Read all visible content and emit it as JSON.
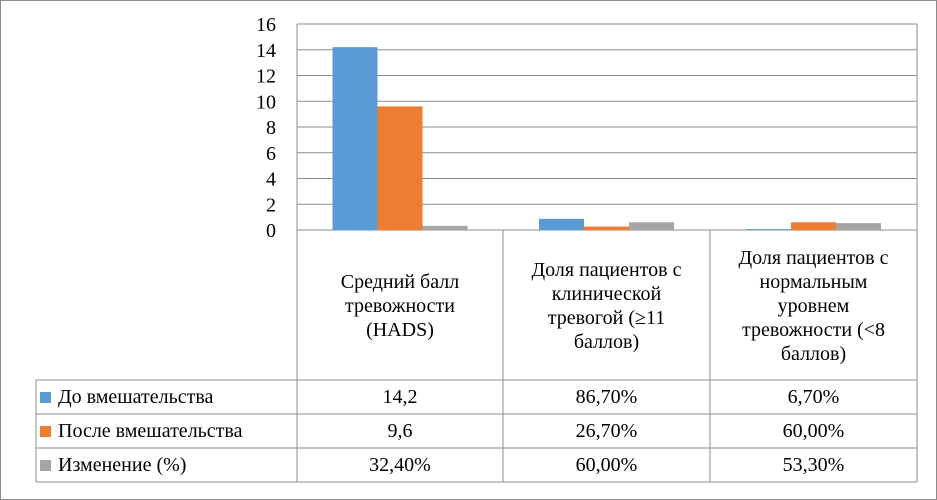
{
  "chart_data": {
    "type": "bar",
    "categories": [
      "Средний балл\nтревожности\n(HADS)",
      "Доля пациентов с\nклинической\nтревогой (≥11\nбаллов)",
      "Доля пациентов с\nнормальным\nуровнем\nтревожности (<8\nбаллов)"
    ],
    "series": [
      {
        "name": "До вмешательства",
        "color": "#5b9bd5",
        "values": [
          14.2,
          0.867,
          0.067
        ],
        "labels": [
          "14,2",
          "86,70%",
          "6,70%"
        ]
      },
      {
        "name": "После вмешательства",
        "color": "#ed7d31",
        "values": [
          9.6,
          0.267,
          0.6
        ],
        "labels": [
          "9,6",
          "26,70%",
          "60,00%"
        ]
      },
      {
        "name": "Изменение (%)",
        "color": "#a5a5a5",
        "values": [
          0.324,
          0.6,
          0.533
        ],
        "labels": [
          "32,40%",
          "60,00%",
          "53,30%"
        ]
      }
    ],
    "y_ticks": [
      "0",
      "2",
      "4",
      "6",
      "8",
      "10",
      "12",
      "14",
      "16"
    ],
    "ylim": [
      0,
      16
    ],
    "grid": true,
    "legend": "data-table"
  }
}
